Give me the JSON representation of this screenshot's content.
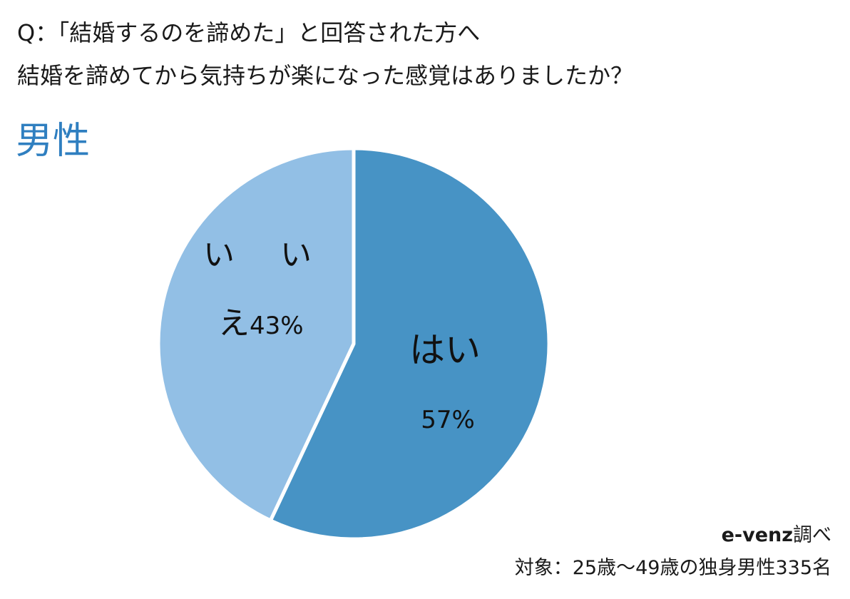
{
  "question": {
    "line1": "Q：「結婚するのを諦めた」と回答された方へ",
    "line2": "結婚を諦めてから気持ちが楽になった感覚はありましたか？"
  },
  "group_label": "男性",
  "chart_data": {
    "type": "pie",
    "title": "",
    "categories": [
      "はい",
      "いいえ"
    ],
    "values": [
      57,
      43
    ],
    "value_labels": [
      "57%",
      "43%"
    ],
    "colors": [
      "#4793c5",
      "#92bfe5"
    ],
    "start": "12 o'clock",
    "direction": "clockwise",
    "legend": "none"
  },
  "footer": {
    "source_brand": "e-venz",
    "source_suffix": "調べ",
    "target": "対象：25歳〜49歳の独身男性335名"
  }
}
